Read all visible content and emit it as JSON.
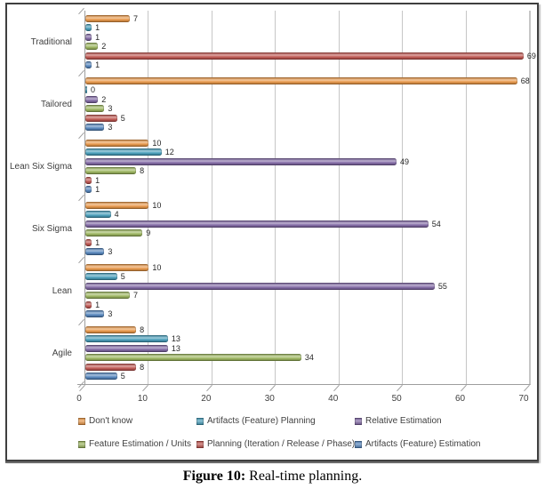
{
  "figure": {
    "caption_bold": "Figure 10:",
    "caption_text": " Real-time planning."
  },
  "chart_data": {
    "type": "bar",
    "orientation": "horizontal",
    "title": "Real-time planning",
    "categories": [
      "Traditional",
      "Tailored",
      "Lean Six Sigma",
      "Six Sigma",
      "Lean",
      "Agile"
    ],
    "series": [
      {
        "name": "Don't know",
        "color": "#E8913C",
        "values": [
          7,
          68,
          10,
          10,
          10,
          8
        ]
      },
      {
        "name": "Artifacts (Feature) Planning",
        "color": "#3B98B7",
        "values": [
          1,
          0,
          12,
          4,
          5,
          13
        ]
      },
      {
        "name": "Relative Estimation",
        "color": "#7A5FA0",
        "values": [
          1,
          2,
          49,
          54,
          55,
          13
        ]
      },
      {
        "name": "Feature Estimation / Units",
        "color": "#96B254",
        "values": [
          2,
          3,
          8,
          9,
          7,
          34
        ]
      },
      {
        "name": "Planning (Iteration / Release / Phase)",
        "color": "#BC4B45",
        "values": [
          69,
          5,
          1,
          1,
          1,
          8
        ]
      },
      {
        "name": "Artifacts (Feature) Estimation",
        "color": "#4A7EBA",
        "values": [
          1,
          3,
          1,
          3,
          3,
          5
        ]
      }
    ],
    "x_ticks": [
      0,
      10,
      20,
      30,
      40,
      50,
      60,
      70
    ],
    "xlim": [
      0,
      70
    ],
    "grid": true,
    "data_labels": true,
    "legend_position": "bottom",
    "legend_order_row_major": [
      "Don't know",
      "Artifacts (Feature) Planning",
      "Relative Estimation",
      "Feature Estimation / Units",
      "Planning (Iteration / Release / Phase)",
      "Artifacts (Feature) Estimation"
    ]
  }
}
